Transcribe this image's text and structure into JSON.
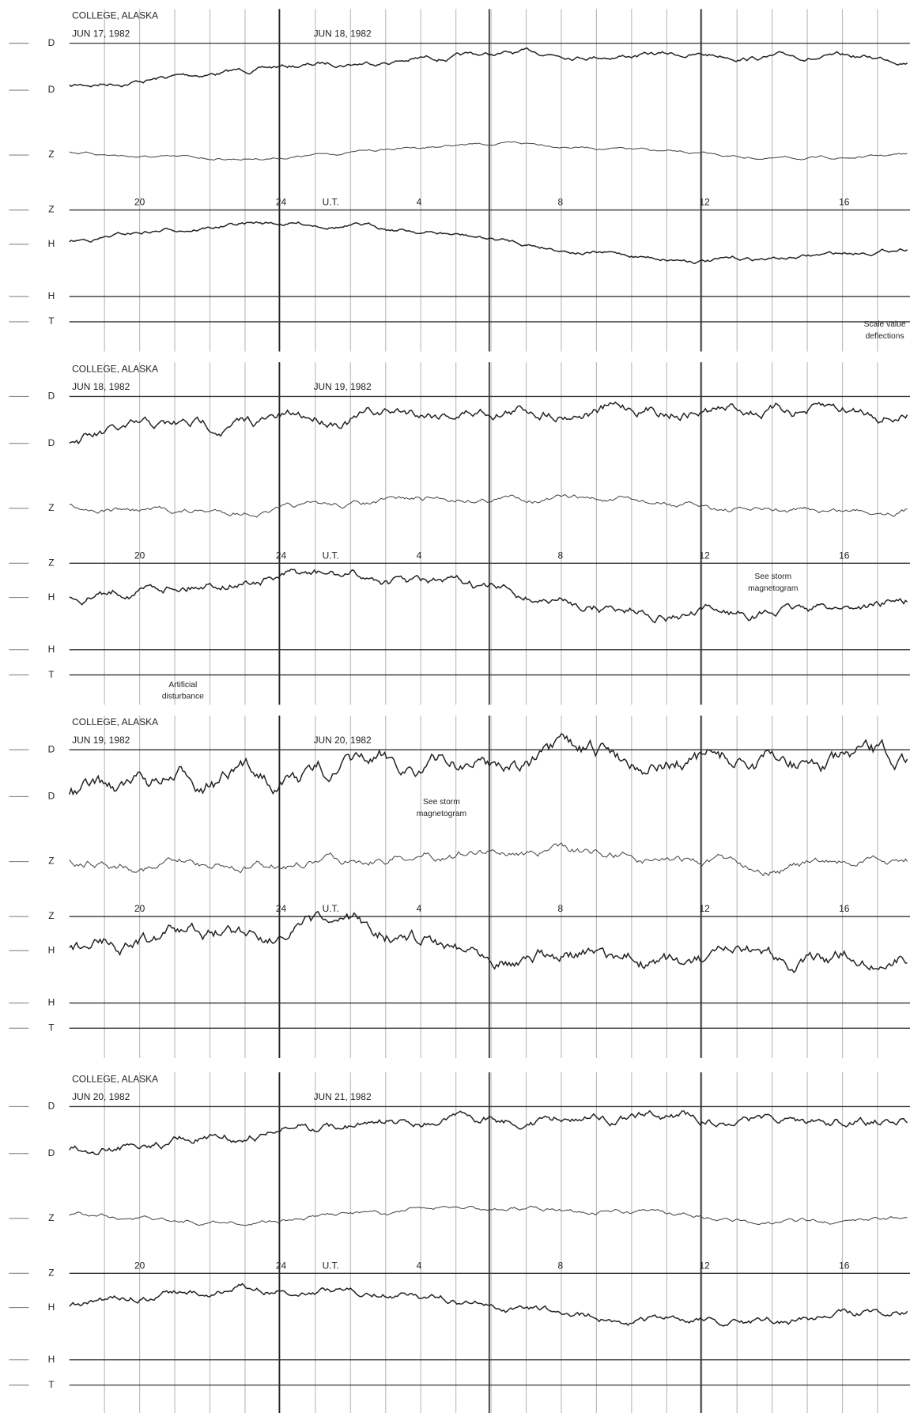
{
  "panels": [
    {
      "station": "COLLEGE, ALASKA",
      "date_start": "JUN 17, 1982",
      "date_next": "JUN 18, 1982",
      "hours": [
        "20",
        "24",
        "U.T.",
        "4",
        "8",
        "12",
        "16"
      ],
      "rows": [
        "D",
        "D",
        "Z",
        "Z",
        "H",
        "H",
        "T"
      ],
      "notes": [
        [
          "Scale value",
          "deflections"
        ]
      ]
    },
    {
      "station": "COLLEGE, ALASKA",
      "date_start": "JUN 18, 1982",
      "date_next": "JUN 19, 1982",
      "hours": [
        "20",
        "24",
        "U.T.",
        "4",
        "8",
        "12",
        "16"
      ],
      "rows": [
        "D",
        "D",
        "Z",
        "Z",
        "H",
        "H",
        "T"
      ],
      "notes": [
        [
          "See storm",
          "magnetogram"
        ],
        [
          "Artificial",
          "disturbance"
        ]
      ]
    },
    {
      "station": "COLLEGE, ALASKA",
      "date_start": "JUN 19, 1982",
      "date_next": "JUN 20, 1982",
      "hours": [
        "20",
        "24",
        "U.T.",
        "4",
        "8",
        "12",
        "16"
      ],
      "rows": [
        "D",
        "D",
        "Z",
        "Z",
        "H",
        "H",
        "T"
      ],
      "notes": [
        [
          "See storm",
          "magnetogram"
        ]
      ]
    },
    {
      "station": "COLLEGE, ALASKA",
      "date_start": "JUN 20, 1982",
      "date_next": "JUN 21, 1982",
      "hours": [
        "20",
        "24",
        "U.T.",
        "4",
        "8",
        "12",
        "16"
      ],
      "rows": [
        "D",
        "D",
        "Z",
        "Z",
        "H",
        "H",
        "T"
      ],
      "notes": []
    }
  ]
}
